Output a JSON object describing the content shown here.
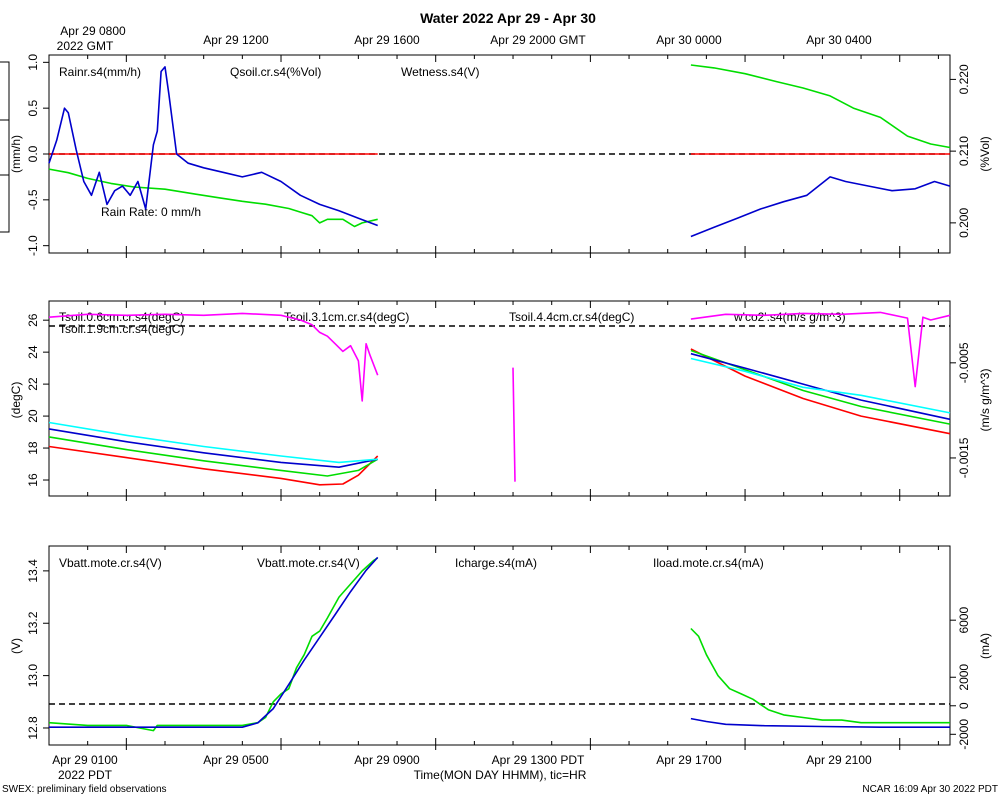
{
  "title": "Water 2022 Apr 29 - Apr 30",
  "top_axis": {
    "start_label_1": "Apr 29 0800",
    "start_label_2": "2022 GMT",
    "ticks": [
      "Apr 29 1200",
      "Apr 29 1600",
      "Apr 29 2000 GMT",
      "Apr 30 0000",
      "Apr 30 0400"
    ]
  },
  "bottom_axis": {
    "ticks": [
      "Apr 29 0100",
      "Apr 29 0500",
      "Apr 29 0900",
      "Apr 29 1300 PDT",
      "Apr 29 1700",
      "Apr 29 2100"
    ],
    "year_label": "2022 PDT",
    "xlabel": "Time(MON DAY HHMM), tic=HR"
  },
  "footer": {
    "left": "SWEX: preliminary field observations",
    "right": "NCAR 16:09 Apr 30 2022 PDT"
  },
  "colors": {
    "red": "#ff0000",
    "green": "#00dd00",
    "blue": "#0000cc",
    "cyan": "#00ffff",
    "magenta": "#ff00ff"
  },
  "chart_data": [
    {
      "type": "line",
      "panel": "top",
      "x_unit": "hours from Apr 29 0000 PDT",
      "xlim": [
        0.0,
        23.3
      ],
      "left_axis": {
        "label": "(mm/h)",
        "ylim": [
          -1.08,
          1.08
        ],
        "ticks": [
          "-1.0",
          "-0.5",
          "0.0",
          "0.5",
          "1.0"
        ]
      },
      "right_axis": {
        "label": "(%Vol)",
        "ylim": [
          0.1958,
          0.2234
        ],
        "ticks": [
          "0.200",
          "0.210",
          "0.220"
        ]
      },
      "annotation": "Rain Rate: 0 mm/h",
      "series": [
        {
          "name": "Rainr.s4(mm/h)",
          "color": "red",
          "axis": "left",
          "segments": [
            {
              "x": [
                0.0,
                8.5
              ],
              "y": [
                0.0,
                0.0
              ]
            },
            {
              "x": [
                16.6,
                23.3
              ],
              "y": [
                0.0,
                0.0
              ]
            }
          ]
        },
        {
          "name": "Qsoil.cr.s4(%Vol)",
          "color": "green",
          "axis": "right",
          "segments": [
            {
              "x": [
                0.0,
                0.5,
                1.0,
                1.6,
                2.2,
                3.0,
                3.8,
                4.4,
                5.0,
                5.6,
                6.2,
                6.5,
                6.8,
                7.0,
                7.2,
                7.6,
                7.9,
                8.1,
                8.5
              ],
              "y": [
                0.2075,
                0.207,
                0.2062,
                0.2055,
                0.205,
                0.2047,
                0.204,
                0.2035,
                0.203,
                0.2026,
                0.202,
                0.2015,
                0.201,
                0.2,
                0.2005,
                0.2005,
                0.1995,
                0.2,
                0.2005
              ]
            },
            {
              "x": [
                16.6,
                17.2,
                18.0,
                18.8,
                19.5,
                20.2,
                20.8,
                21.5,
                22.2,
                22.8,
                23.3
              ],
              "y": [
                0.222,
                0.2216,
                0.2208,
                0.2197,
                0.2188,
                0.2177,
                0.216,
                0.2147,
                0.2121,
                0.211,
                0.2105
              ]
            }
          ]
        },
        {
          "name": "Wetness.s4(V)",
          "color": "blue",
          "axis": "left",
          "segments": [
            {
              "x": [
                0.0,
                0.2,
                0.4,
                0.5,
                0.7,
                0.9,
                1.1,
                1.3,
                1.5,
                1.7,
                1.9,
                2.1,
                2.3,
                2.5,
                2.7,
                2.8,
                2.9,
                3.0,
                3.1,
                3.3,
                3.6,
                4.0,
                4.5,
                5.0,
                5.5,
                6.0,
                6.5,
                7.0,
                7.5,
                8.0,
                8.5
              ],
              "y": [
                -0.1,
                0.15,
                0.5,
                0.45,
                0.05,
                -0.3,
                -0.45,
                -0.2,
                -0.55,
                -0.4,
                -0.35,
                -0.45,
                -0.3,
                -0.6,
                0.1,
                0.25,
                0.9,
                0.95,
                0.65,
                0.0,
                -0.1,
                -0.15,
                -0.2,
                -0.25,
                -0.2,
                -0.3,
                -0.45,
                -0.55,
                -0.62,
                -0.7,
                -0.78
              ]
            },
            {
              "x": [
                16.6,
                17.2,
                17.8,
                18.4,
                19.0,
                19.6,
                20.2,
                20.6,
                21.2,
                21.8,
                22.4,
                22.9,
                23.3
              ],
              "y": [
                -0.9,
                -0.8,
                -0.7,
                -0.6,
                -0.52,
                -0.45,
                -0.25,
                -0.3,
                -0.35,
                -0.4,
                -0.38,
                -0.3,
                -0.35
              ]
            }
          ]
        }
      ]
    },
    {
      "type": "line",
      "panel": "middle",
      "x_unit": "hours from Apr 29 0000 PDT",
      "xlim": [
        0.0,
        23.3
      ],
      "left_axis": {
        "label": "(degC)",
        "ylim": [
          15.0,
          27.2
        ],
        "ticks": [
          "16",
          "18",
          "20",
          "22",
          "24",
          "26"
        ]
      },
      "right_axis": {
        "label": "(m/s g/m^3)",
        "ylim": [
          -0.0019,
          0.00015
        ],
        "ticks": [
          "-0.0015",
          "-0.0005"
        ]
      },
      "series": [
        {
          "name": "Tsoil.0.6cm.cr.s4(degC)",
          "color": "red",
          "axis": "left",
          "segments": [
            {
              "x": [
                0.0,
                2.0,
                4.0,
                6.0,
                7.0,
                7.6,
                8.0,
                8.5
              ],
              "y": [
                18.1,
                17.4,
                16.7,
                16.1,
                15.7,
                15.75,
                16.3,
                17.5
              ]
            },
            {
              "x": [
                16.6,
                18.0,
                19.5,
                21.0,
                23.3
              ],
              "y": [
                24.2,
                22.5,
                21.1,
                20.0,
                18.9
              ]
            }
          ]
        },
        {
          "name": "Tsoil.1.9cm.cr.s4(degC)",
          "color": "green",
          "axis": "left",
          "segments": [
            {
              "x": [
                0.0,
                2.0,
                4.0,
                6.0,
                7.2,
                8.0,
                8.5
              ],
              "y": [
                18.7,
                17.9,
                17.2,
                16.6,
                16.25,
                16.6,
                17.3
              ]
            },
            {
              "x": [
                16.6,
                18.0,
                19.5,
                21.0,
                23.3
              ],
              "y": [
                24.1,
                22.9,
                21.6,
                20.6,
                19.5
              ]
            }
          ]
        },
        {
          "name": "Tsoil.3.1cm.cr.s4(degC)",
          "color": "blue",
          "axis": "left",
          "segments": [
            {
              "x": [
                0.0,
                2.0,
                4.0,
                6.0,
                7.5,
                8.5
              ],
              "y": [
                19.2,
                18.4,
                17.7,
                17.1,
                16.8,
                17.3
              ]
            },
            {
              "x": [
                16.6,
                18.0,
                19.5,
                21.0,
                23.3
              ],
              "y": [
                23.9,
                23.0,
                22.0,
                21.0,
                19.8
              ]
            }
          ]
        },
        {
          "name": "Tsoil.4.4cm.cr.s4(degC)",
          "color": "cyan",
          "axis": "left",
          "segments": [
            {
              "x": [
                0.0,
                2.0,
                4.0,
                6.0,
                7.5,
                8.5
              ],
              "y": [
                19.6,
                18.8,
                18.1,
                17.5,
                17.1,
                17.3
              ]
            },
            {
              "x": [
                16.6,
                18.0,
                19.5,
                21.0,
                23.3
              ],
              "y": [
                23.6,
                22.8,
                21.8,
                21.3,
                20.2
              ]
            }
          ]
        },
        {
          "name": "w'co2'.s4(m/s g/m^3)",
          "color": "magenta",
          "axis": "right",
          "segments": [
            {
              "x": [
                0.0,
                1.0,
                2.0,
                3.0,
                4.0,
                5.0,
                6.0,
                6.5,
                6.8,
                7.0,
                7.2,
                7.4,
                7.6,
                7.8,
                8.0,
                8.1,
                8.2,
                8.3,
                8.5
              ],
              "y": [
                -2e-05,
                1e-05,
                0.0,
                1e-05,
                0.0,
                2e-05,
                0.0,
                -5e-05,
                -0.0001,
                -0.00018,
                -0.00022,
                -0.0003,
                -0.00038,
                -0.00032,
                -0.00048,
                -0.0009,
                -0.0003,
                -0.00042,
                -0.00063
              ]
            },
            {
              "x": [
                12.0,
                12.05
              ],
              "y": [
                -0.00055,
                -0.00175
              ]
            },
            {
              "x": [
                16.6,
                17.5,
                18.5,
                19.5,
                20.5,
                21.5,
                22.2,
                22.4,
                22.6,
                22.8,
                23.3
              ],
              "y": [
                -4e-05,
                1e-05,
                0.0,
                2e-05,
                1e-05,
                3e-05,
                -3e-05,
                -0.00075,
                -2e-05,
                -5e-05,
                0.0
              ]
            }
          ]
        }
      ]
    },
    {
      "type": "line",
      "panel": "bottom",
      "x_unit": "hours from Apr 29 0000 PDT",
      "xlim": [
        0.0,
        23.3
      ],
      "left_axis": {
        "label": "(V)",
        "ylim": [
          12.735,
          13.495
        ],
        "ticks": [
          "12.8",
          "13.0",
          "13.2",
          "13.4"
        ]
      },
      "right_axis": {
        "label": "(mA)",
        "ylim": [
          -2750,
          11200
        ],
        "ticks": [
          "-2000",
          "0",
          "2000",
          "6000"
        ]
      },
      "series": [
        {
          "name": "Vbatt.mote.cr.s4(V)",
          "color": "red",
          "axis": "left",
          "segments": []
        },
        {
          "name": "Vbatt.mote.cr.s4(V)",
          "color": "green",
          "axis": "left",
          "segments": [
            {
              "x": [
                0.0,
                1.0,
                2.0,
                2.7,
                2.8,
                3.0,
                4.0,
                5.0,
                5.4,
                5.6,
                5.8,
                6.0,
                6.2,
                6.4,
                6.6,
                6.8,
                7.0,
                7.2,
                7.5,
                7.8,
                8.1,
                8.4,
                8.5
              ],
              "y": [
                12.82,
                12.81,
                12.81,
                12.79,
                12.81,
                12.81,
                12.81,
                12.81,
                12.82,
                12.84,
                12.9,
                12.93,
                12.95,
                13.03,
                13.08,
                13.15,
                13.17,
                13.22,
                13.3,
                13.35,
                13.4,
                13.44,
                13.45
              ]
            },
            {
              "x": [
                16.6,
                16.8,
                17.0,
                17.3,
                17.6,
                17.9,
                18.2,
                18.6,
                19.0,
                19.5,
                20.0,
                20.5,
                21.0,
                22.0,
                23.3
              ],
              "y": [
                13.18,
                13.15,
                13.08,
                13.0,
                12.95,
                12.93,
                12.91,
                12.87,
                12.85,
                12.84,
                12.83,
                12.83,
                12.82,
                12.82,
                12.82
              ]
            }
          ]
        },
        {
          "name": "Icharge.s4(mA)",
          "color": "blue",
          "axis": "right",
          "segments": [
            {
              "x": [
                0.0,
                2.0,
                4.0,
                5.0,
                5.4,
                5.8,
                6.2,
                6.6,
                7.0,
                7.4,
                7.8,
                8.2,
                8.5
              ],
              "y": [
                -1500,
                -1500,
                -1500,
                -1500,
                -1200,
                -200,
                1500,
                3200,
                4800,
                6400,
                8000,
                9500,
                10400
              ]
            },
            {
              "x": [
                16.6,
                17.0,
                17.5,
                18.5,
                20.0,
                21.5,
                23.3
              ],
              "y": [
                -900,
                -1100,
                -1300,
                -1400,
                -1450,
                -1500,
                -1500
              ]
            }
          ]
        },
        {
          "name": "Iload.mote.cr.s4(mA)",
          "color": "cyan",
          "axis": "right",
          "segments": []
        }
      ]
    }
  ]
}
